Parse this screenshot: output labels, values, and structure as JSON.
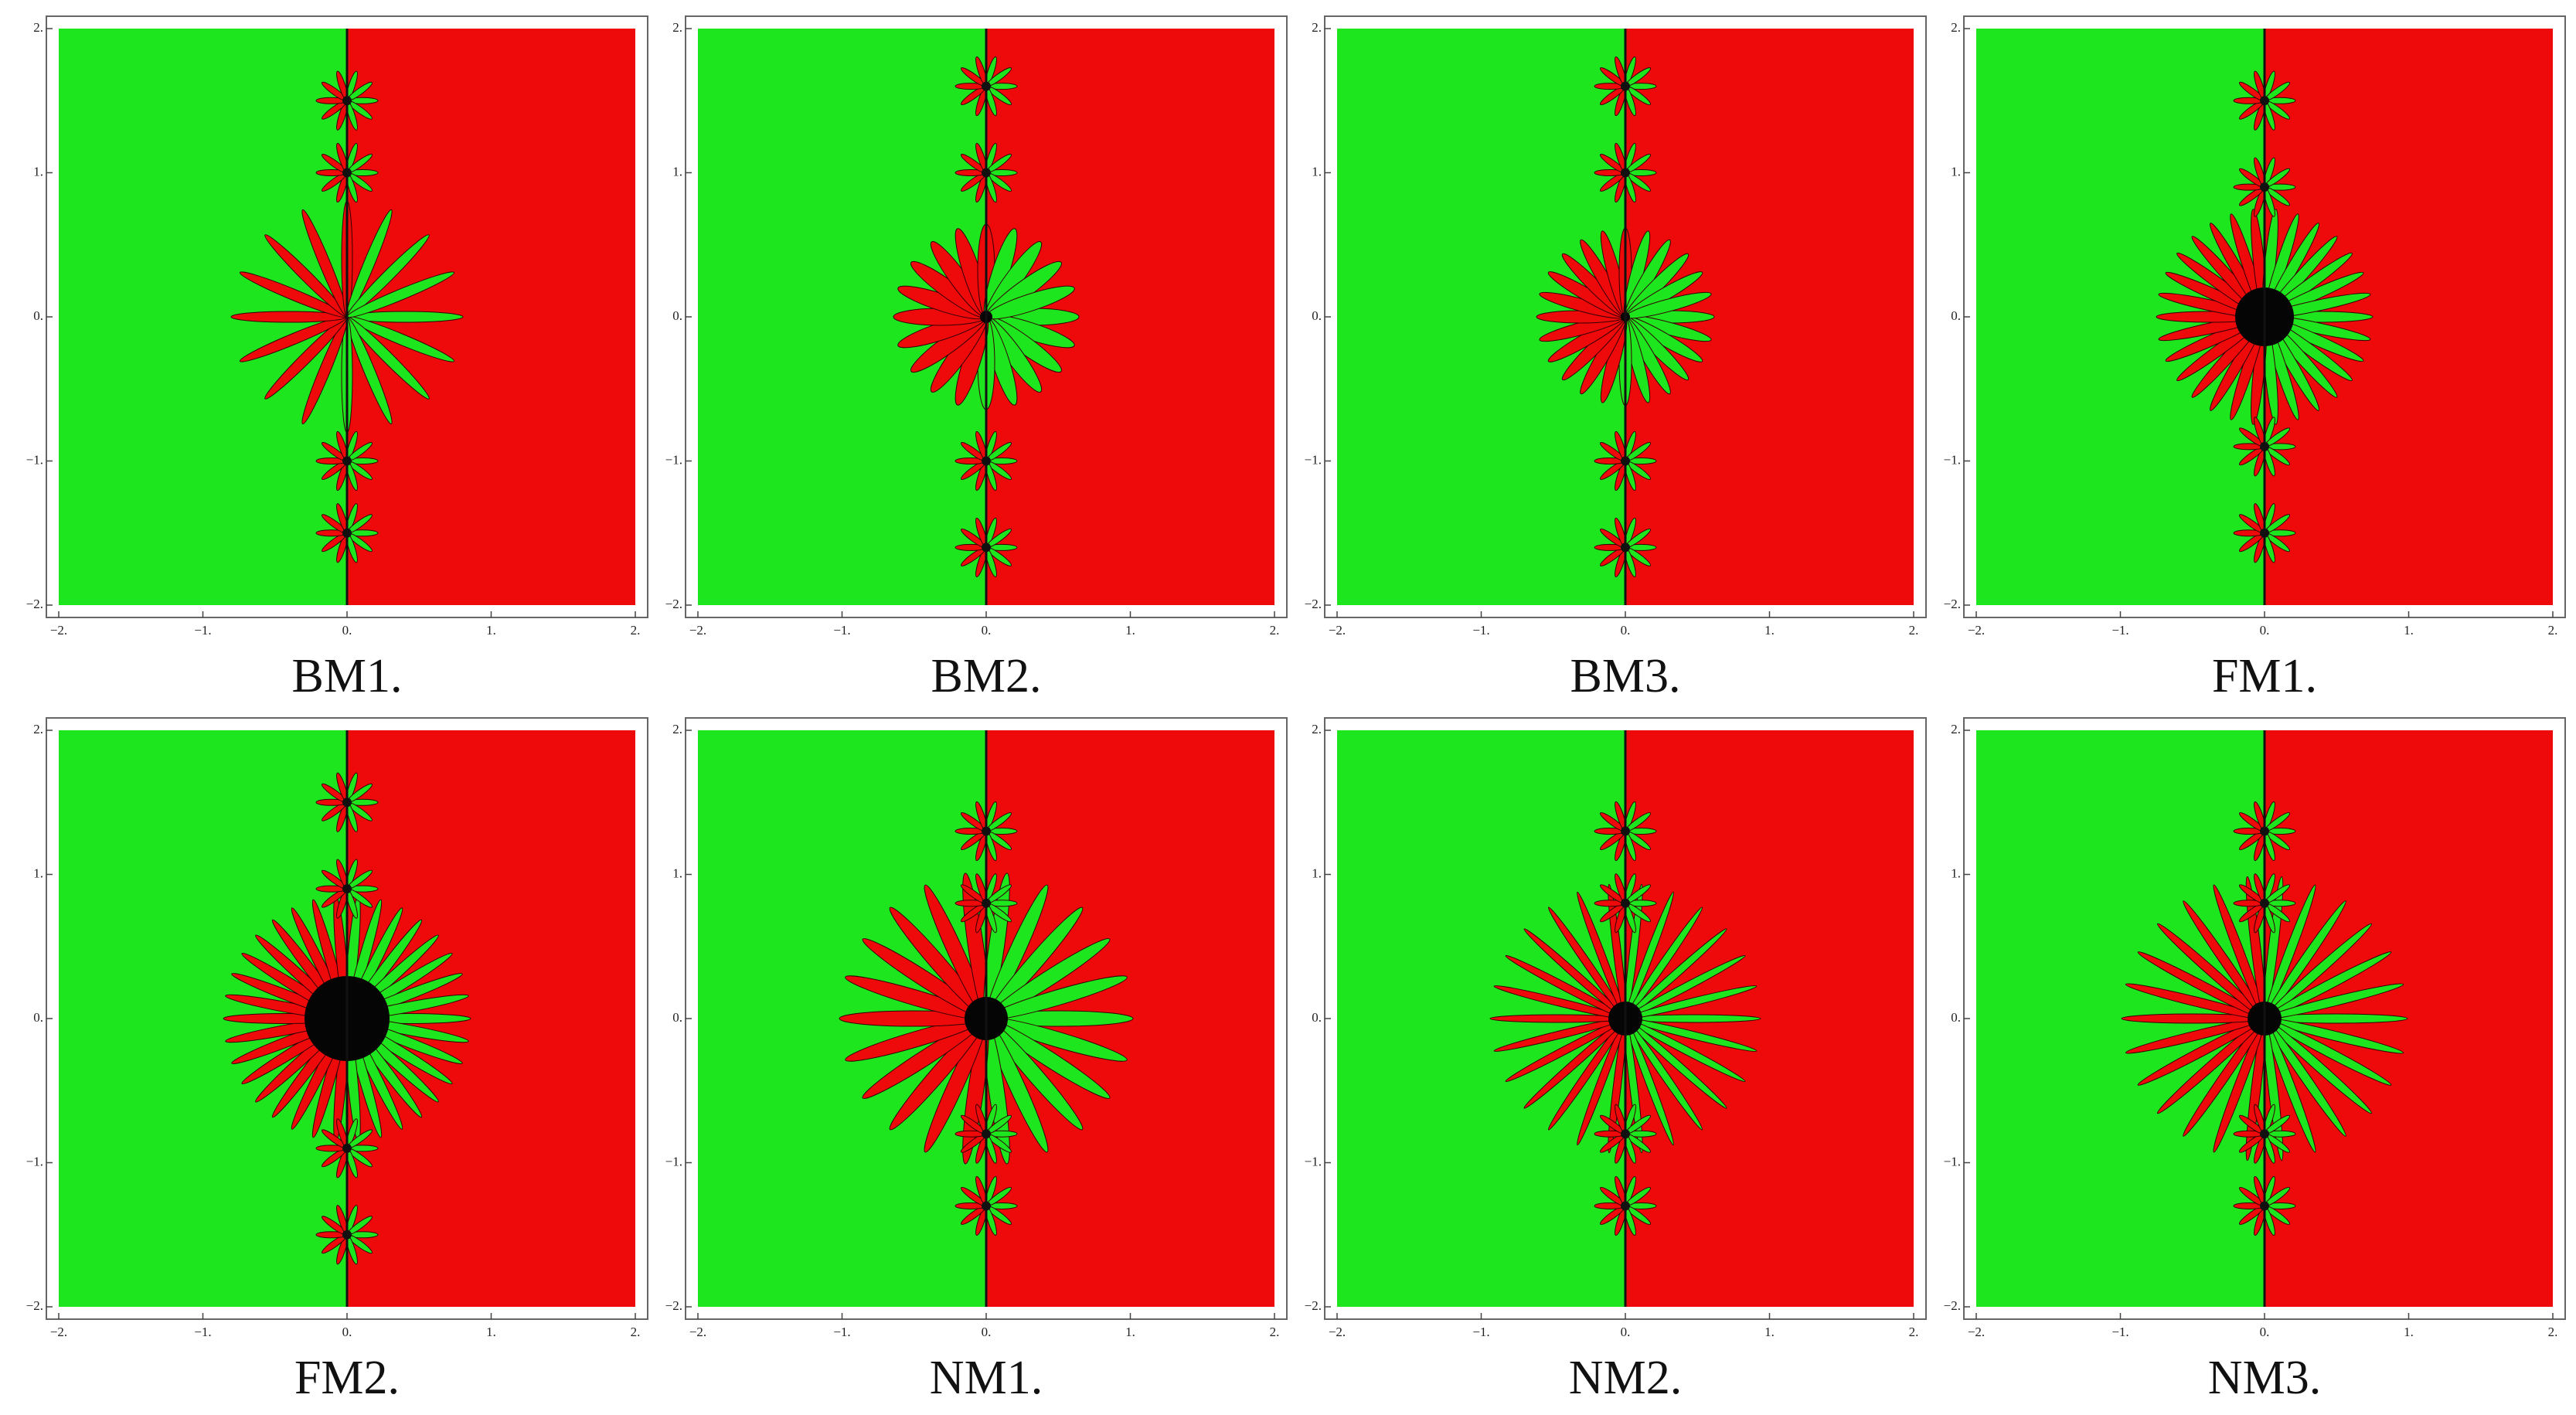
{
  "axes": {
    "xlim": [
      -2,
      2
    ],
    "ylim": [
      -2,
      2
    ],
    "xticks": [
      {
        "value": -2,
        "label": "−2."
      },
      {
        "value": -1,
        "label": "−1."
      },
      {
        "value": 0,
        "label": "0."
      },
      {
        "value": 1,
        "label": "1."
      },
      {
        "value": 2,
        "label": "2."
      }
    ],
    "yticks": [
      {
        "value": 2,
        "label": "2."
      },
      {
        "value": 1,
        "label": "1."
      },
      {
        "value": 0,
        "label": "0."
      },
      {
        "value": -1,
        "label": "−1."
      },
      {
        "value": -2,
        "label": "−2."
      }
    ]
  },
  "panels": [
    {
      "label": "BM1."
    },
    {
      "label": "BM2."
    },
    {
      "label": "BM3."
    },
    {
      "label": "FM1."
    },
    {
      "label": "FM2."
    },
    {
      "label": "NM1."
    },
    {
      "label": "NM2."
    },
    {
      "label": "NM3."
    }
  ]
}
